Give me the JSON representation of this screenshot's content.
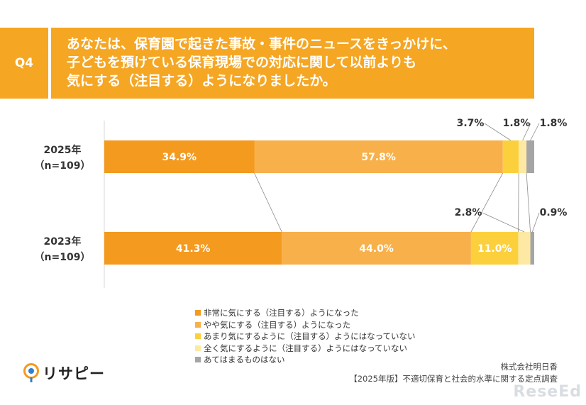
{
  "question": {
    "tag": "Q4",
    "lines": [
      "あなたは、保育園で起きた事故・事件のニュースをきっかけに、",
      "子どもを預けている保育現場での対応に関して以前よりも",
      "気にする（注目する）ようになりましたか。"
    ]
  },
  "chart_data": {
    "type": "bar",
    "orientation": "horizontal-stacked-100",
    "categories": [
      {
        "label": "2025年",
        "sub": "（n=109）"
      },
      {
        "label": "2023年",
        "sub": "（n=109）"
      }
    ],
    "series": [
      {
        "name": "非常に気にする（注目する）ようになった",
        "color": "#f39a1f",
        "values": [
          34.9,
          41.3
        ],
        "labels": [
          "34.9%",
          "41.3%"
        ]
      },
      {
        "name": "やや気にする（注目する）ようになった",
        "color": "#f8b04a",
        "values": [
          57.8,
          44.0
        ],
        "labels": [
          "57.8%",
          "44.0%"
        ]
      },
      {
        "name": "あまり気にするように（注目する）ようにはなっていない",
        "color": "#fcd03c",
        "values": [
          3.7,
          11.0
        ],
        "labels": [
          "3.7%",
          "11.0%"
        ]
      },
      {
        "name": "全く気にするように（注目する）ようにはなっていない",
        "color": "#fde9a3",
        "values": [
          1.8,
          2.8
        ],
        "labels": [
          "1.8%",
          "2.8%"
        ]
      },
      {
        "name": "あてはまるものはない",
        "color": "#a5a5a5",
        "values": [
          1.8,
          0.9
        ],
        "labels": [
          "1.8%",
          "0.9%"
        ]
      }
    ],
    "xlim": [
      0,
      100
    ]
  },
  "logo": {
    "text": "リサピー"
  },
  "source": {
    "company": "株式会社明日香",
    "survey": "【2025年版】不適切保育と社会的水準に関する定点調査"
  },
  "watermark": {
    "text": "ReseEd"
  }
}
